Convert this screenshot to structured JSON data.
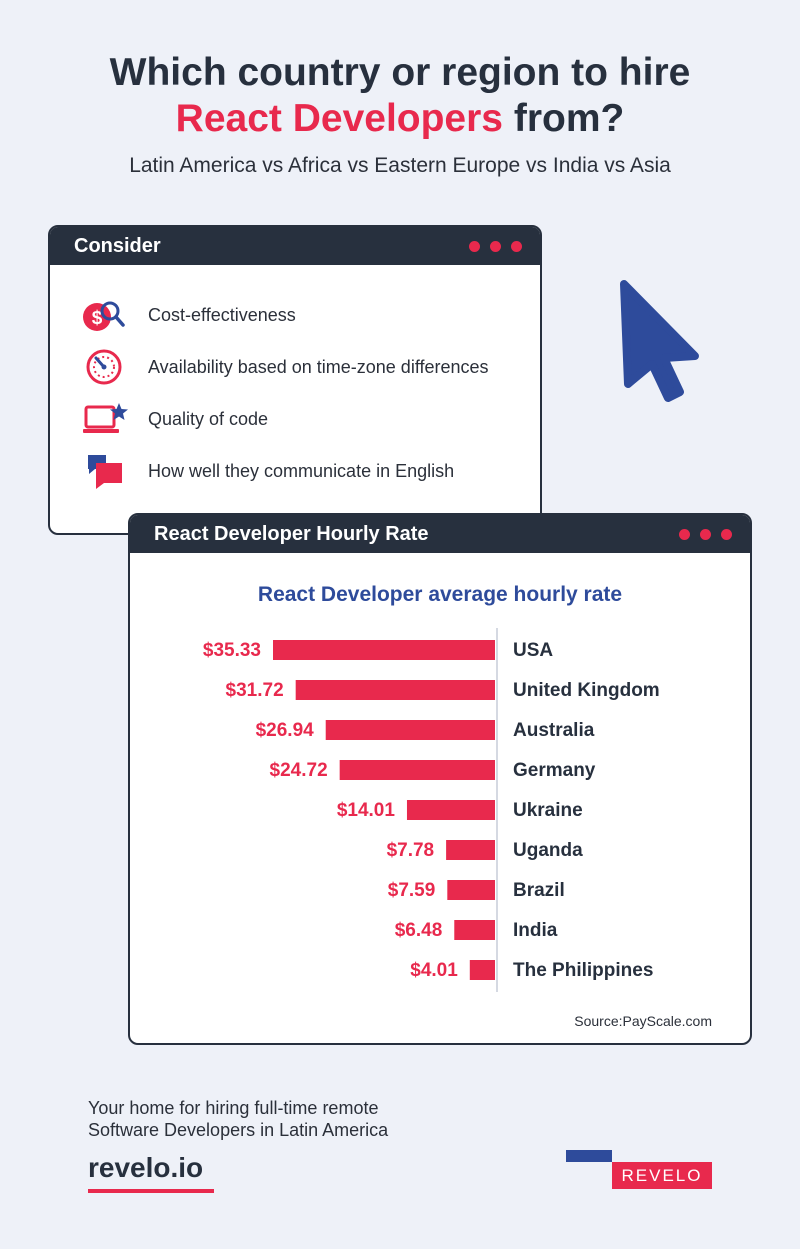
{
  "header": {
    "title_line1": "Which country or region to hire",
    "title_accent": "React Developers",
    "title_rest": " from?",
    "subtitle": "Latin America vs Africa vs Eastern Europe vs India vs Asia"
  },
  "consider": {
    "title": "Consider",
    "items": [
      {
        "label": "Cost-effectiveness",
        "icon": "dollar-search-icon"
      },
      {
        "label": "Availability based on time-zone differences",
        "icon": "clock-icon"
      },
      {
        "label": "Quality of code",
        "icon": "laptop-star-icon"
      },
      {
        "label": "How well they communicate in English",
        "icon": "chat-bubbles-icon"
      }
    ]
  },
  "rates_window": {
    "title": "React Developer Hourly Rate",
    "source": "Source:PayScale.com"
  },
  "chart_data": {
    "type": "bar",
    "orientation": "horizontal",
    "title": "React Developer average hourly rate",
    "categories": [
      "USA",
      "United Kingdom",
      "Australia",
      "Germany",
      "Ukraine",
      "Uganda",
      "Brazil",
      "India",
      "The Philippines"
    ],
    "values": [
      35.33,
      31.72,
      26.94,
      24.72,
      14.01,
      7.78,
      7.59,
      6.48,
      4.01
    ],
    "value_labels": [
      "$35.33",
      "$31.72",
      "$26.94",
      "$24.72",
      "$14.01",
      "$7.78",
      "$7.59",
      "$6.48",
      "$4.01"
    ],
    "bar_color": "#e8294d",
    "xlim": [
      0,
      35.33
    ],
    "grid": false
  },
  "footer": {
    "line1": "Your home for hiring full-time remote",
    "line2": "Software Developers in Latin America",
    "brand": "revelo.io",
    "logo": "REVELO"
  },
  "colors": {
    "accent": "#e8294d",
    "dark": "#27303e",
    "blue": "#2e4b9b",
    "background": "#eef1f8"
  }
}
